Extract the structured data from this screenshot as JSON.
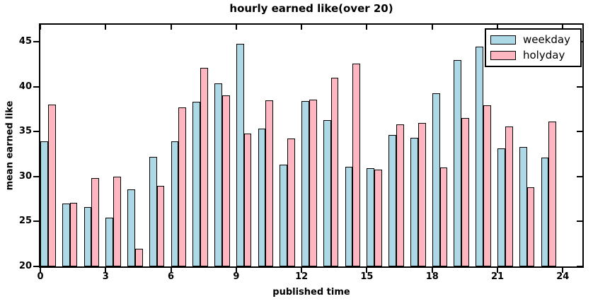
{
  "figure": {
    "title": "hourly earned like(over 20)",
    "xlabel": "published time",
    "ylabel": "mean earned like"
  },
  "legend": {
    "position": "upper right",
    "items": [
      {
        "label": "weekday",
        "color": "#ADD8E6"
      },
      {
        "label": "holyday",
        "color": "#FFB6C1"
      }
    ]
  },
  "chart_data": {
    "type": "bar",
    "title": "hourly earned like(over 20)",
    "xlabel": "published time",
    "ylabel": "mean earned like",
    "categories": [
      0,
      1,
      2,
      3,
      4,
      5,
      6,
      7,
      8,
      9,
      10,
      11,
      12,
      13,
      14,
      15,
      16,
      17,
      18,
      19,
      20,
      21,
      22,
      23
    ],
    "series": [
      {
        "name": "weekday",
        "color": "#ADD8E6",
        "edge_color": "#000000",
        "values": [
          33.9,
          27.0,
          26.6,
          25.4,
          28.6,
          32.2,
          33.9,
          38.3,
          40.4,
          44.8,
          35.3,
          31.3,
          38.4,
          36.3,
          31.1,
          30.9,
          34.6,
          34.3,
          39.3,
          43.0,
          44.5,
          33.1,
          33.3,
          32.1
        ]
      },
      {
        "name": "holyday",
        "color": "#FFB6C1",
        "edge_color": "#000000",
        "values": [
          38.0,
          27.1,
          29.8,
          30.0,
          22.0,
          29.0,
          37.7,
          42.1,
          39.0,
          34.8,
          38.5,
          34.2,
          38.6,
          41.0,
          42.6,
          30.8,
          35.8,
          36.0,
          31.0,
          36.5,
          37.9,
          35.6,
          28.8,
          36.1
        ]
      }
    ],
    "bar_width": 0.35,
    "xlim": [
      0,
      24.9
    ],
    "ylim": [
      20,
      46.9
    ],
    "xticks": [
      0,
      3,
      6,
      9,
      12,
      15,
      18,
      21,
      24
    ],
    "yticks": [
      20,
      25,
      30,
      35,
      40,
      45
    ],
    "grid": false,
    "legend_position": "upper right"
  }
}
